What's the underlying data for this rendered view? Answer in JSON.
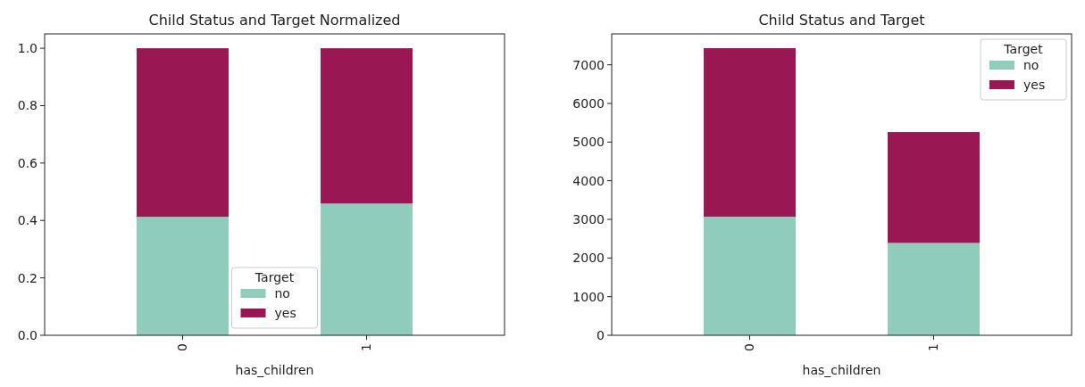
{
  "chart_data": [
    {
      "type": "bar",
      "title": "Child Status and Target Normalized",
      "xlabel": "has_children",
      "categories": [
        "0",
        "1"
      ],
      "stacked": true,
      "legend": "bottom",
      "legend_title": "Target",
      "ylim": [
        0,
        1.05
      ],
      "yticks": [
        {
          "value": 0,
          "label": "0.0"
        },
        {
          "value": 0.2,
          "label": "0.2"
        },
        {
          "value": 0.4,
          "label": "0.4"
        },
        {
          "value": 0.6,
          "label": "0.6"
        },
        {
          "value": 0.8,
          "label": "0.8"
        },
        {
          "value": 1,
          "label": "1.0"
        }
      ],
      "series": [
        {
          "name": "no",
          "color": "#8fccbb",
          "values": [
            0.413,
            0.459
          ]
        },
        {
          "name": "yes",
          "color": "#991853",
          "values": [
            0.587,
            0.541
          ]
        }
      ]
    },
    {
      "type": "bar",
      "title": "Child Status and Target",
      "xlabel": "has_children",
      "categories": [
        "0",
        "1"
      ],
      "stacked": true,
      "legend": "top right",
      "legend_title": "Target",
      "ylim": [
        0,
        7800
      ],
      "yticks": [
        0,
        1000,
        2000,
        3000,
        4000,
        5000,
        6000,
        7000
      ],
      "series": [
        {
          "name": "no",
          "color": "#8fccbb",
          "values": [
            3070,
            2390
          ]
        },
        {
          "name": "yes",
          "color": "#991853",
          "values": [
            4360,
            2870
          ]
        }
      ]
    }
  ]
}
